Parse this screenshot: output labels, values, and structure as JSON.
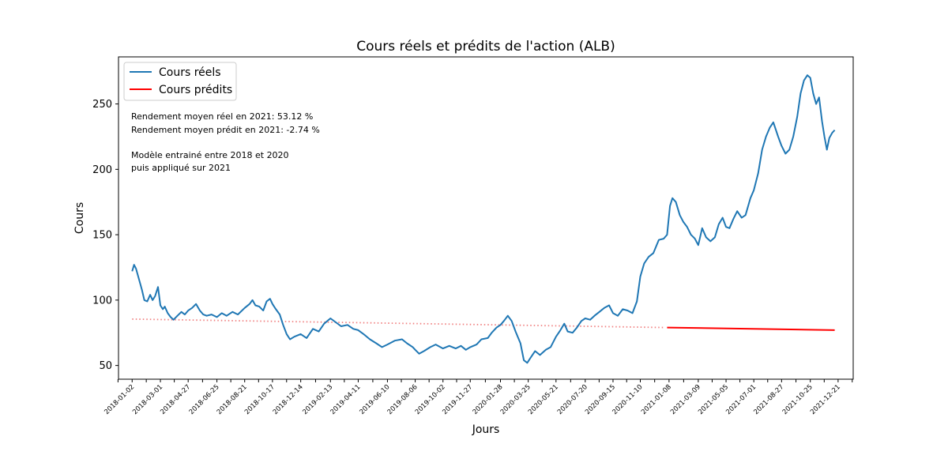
{
  "chart_data": {
    "type": "line",
    "title": "Cours réels et prédits de l'action (ALB)",
    "xlabel": "Jours",
    "ylabel": "Cours",
    "ylim": [
      39.5,
      286
    ],
    "yticks": [
      50,
      100,
      150,
      200,
      250
    ],
    "xlim": [
      "2017-12-05",
      "2022-01-21"
    ],
    "xticks": [
      "2018-01-02",
      "2018-03-01",
      "2018-04-27",
      "2018-06-25",
      "2018-08-21",
      "2018-10-17",
      "2018-12-14",
      "2019-02-13",
      "2019-04-11",
      "2019-06-10",
      "2019-08-06",
      "2019-10-02",
      "2019-11-27",
      "2020-01-28",
      "2020-03-25",
      "2020-05-21",
      "2020-07-20",
      "2020-09-15",
      "2020-11-10",
      "2021-01-08",
      "2021-03-09",
      "2021-05-05",
      "2021-07-01",
      "2021-08-27",
      "2021-10-25",
      "2021-12-21"
    ],
    "grid": false,
    "legend_position": "upper left",
    "legend": [
      "Cours réels",
      "Cours prédits"
    ],
    "colors": {
      "real": "#1f77b4",
      "predicted": "#ff0000",
      "predicted_train": "#f08080"
    },
    "annotations": [
      "Rendement moyen réel en 2021: 53.12 %",
      "Rendement moyen prédit en 2021: -2.74 %",
      "",
      "Modèle entrainé entre 2018 et 2020",
      "puis appliqué sur 2021"
    ],
    "series": [
      {
        "name": "Cours réels",
        "points": [
          [
            "2018-01-02",
            122
          ],
          [
            "2018-01-06",
            127
          ],
          [
            "2018-01-10",
            124
          ],
          [
            "2018-01-16",
            116
          ],
          [
            "2018-01-22",
            108
          ],
          [
            "2018-01-27",
            100
          ],
          [
            "2018-02-02",
            99
          ],
          [
            "2018-02-08",
            104
          ],
          [
            "2018-02-13",
            100
          ],
          [
            "2018-02-18",
            103
          ],
          [
            "2018-02-24",
            110
          ],
          [
            "2018-03-01",
            96
          ],
          [
            "2018-03-06",
            93
          ],
          [
            "2018-03-10",
            95
          ],
          [
            "2018-03-16",
            90
          ],
          [
            "2018-03-22",
            87
          ],
          [
            "2018-03-28",
            85
          ],
          [
            "2018-04-05",
            88
          ],
          [
            "2018-04-13",
            91
          ],
          [
            "2018-04-20",
            89
          ],
          [
            "2018-04-27",
            92
          ],
          [
            "2018-05-05",
            94
          ],
          [
            "2018-05-13",
            97
          ],
          [
            "2018-05-21",
            92
          ],
          [
            "2018-05-28",
            89
          ],
          [
            "2018-06-04",
            88
          ],
          [
            "2018-06-14",
            89
          ],
          [
            "2018-06-25",
            87
          ],
          [
            "2018-07-05",
            90
          ],
          [
            "2018-07-15",
            88
          ],
          [
            "2018-07-27",
            91
          ],
          [
            "2018-08-07",
            89
          ],
          [
            "2018-08-21",
            94
          ],
          [
            "2018-08-31",
            97
          ],
          [
            "2018-09-06",
            100
          ],
          [
            "2018-09-12",
            96
          ],
          [
            "2018-09-20",
            95
          ],
          [
            "2018-09-28",
            92
          ],
          [
            "2018-10-05",
            99
          ],
          [
            "2018-10-12",
            101
          ],
          [
            "2018-10-17",
            97
          ],
          [
            "2018-10-24",
            93
          ],
          [
            "2018-11-01",
            89
          ],
          [
            "2018-11-08",
            81
          ],
          [
            "2018-11-15",
            74
          ],
          [
            "2018-11-22",
            70
          ],
          [
            "2018-12-01",
            72
          ],
          [
            "2018-12-14",
            74
          ],
          [
            "2018-12-26",
            71
          ],
          [
            "2019-01-08",
            78
          ],
          [
            "2019-01-20",
            76
          ],
          [
            "2019-01-31",
            82
          ],
          [
            "2019-02-13",
            86
          ],
          [
            "2019-02-24",
            83
          ],
          [
            "2019-03-07",
            80
          ],
          [
            "2019-03-20",
            81
          ],
          [
            "2019-04-01",
            78
          ],
          [
            "2019-04-11",
            77
          ],
          [
            "2019-04-22",
            74
          ],
          [
            "2019-05-05",
            70
          ],
          [
            "2019-05-18",
            67
          ],
          [
            "2019-05-30",
            64
          ],
          [
            "2019-06-10",
            66
          ],
          [
            "2019-06-25",
            69
          ],
          [
            "2019-07-10",
            70
          ],
          [
            "2019-07-20",
            67
          ],
          [
            "2019-08-01",
            64
          ],
          [
            "2019-08-06",
            62
          ],
          [
            "2019-08-14",
            59
          ],
          [
            "2019-08-24",
            61
          ],
          [
            "2019-09-06",
            64
          ],
          [
            "2019-09-17",
            66
          ],
          [
            "2019-10-02",
            63
          ],
          [
            "2019-10-15",
            65
          ],
          [
            "2019-10-28",
            63
          ],
          [
            "2019-11-08",
            65
          ],
          [
            "2019-11-18",
            62
          ],
          [
            "2019-11-27",
            64
          ],
          [
            "2019-12-10",
            66
          ],
          [
            "2019-12-20",
            70
          ],
          [
            "2020-01-02",
            71
          ],
          [
            "2020-01-10",
            75
          ],
          [
            "2020-01-20",
            79
          ],
          [
            "2020-01-28",
            81
          ],
          [
            "2020-02-04",
            84
          ],
          [
            "2020-02-12",
            88
          ],
          [
            "2020-02-20",
            84
          ],
          [
            "2020-02-28",
            76
          ],
          [
            "2020-03-09",
            67
          ],
          [
            "2020-03-16",
            54
          ],
          [
            "2020-03-23",
            52
          ],
          [
            "2020-03-30",
            56
          ],
          [
            "2020-04-08",
            61
          ],
          [
            "2020-04-18",
            58
          ],
          [
            "2020-04-30",
            62
          ],
          [
            "2020-05-10",
            64
          ],
          [
            "2020-05-21",
            72
          ],
          [
            "2020-05-30",
            77
          ],
          [
            "2020-06-07",
            82
          ],
          [
            "2020-06-14",
            76
          ],
          [
            "2020-06-24",
            75
          ],
          [
            "2020-07-03",
            79
          ],
          [
            "2020-07-12",
            84
          ],
          [
            "2020-07-20",
            86
          ],
          [
            "2020-07-30",
            85
          ],
          [
            "2020-08-08",
            88
          ],
          [
            "2020-08-18",
            91
          ],
          [
            "2020-08-28",
            94
          ],
          [
            "2020-09-07",
            96
          ],
          [
            "2020-09-15",
            90
          ],
          [
            "2020-09-25",
            88
          ],
          [
            "2020-10-05",
            93
          ],
          [
            "2020-10-15",
            92
          ],
          [
            "2020-10-25",
            90
          ],
          [
            "2020-11-03",
            99
          ],
          [
            "2020-11-10",
            118
          ],
          [
            "2020-11-18",
            128
          ],
          [
            "2020-11-27",
            133
          ],
          [
            "2020-12-07",
            136
          ],
          [
            "2020-12-18",
            146
          ],
          [
            "2020-12-28",
            147
          ],
          [
            "2021-01-04",
            150
          ],
          [
            "2021-01-10",
            172
          ],
          [
            "2021-01-15",
            178
          ],
          [
            "2021-01-22",
            175
          ],
          [
            "2021-01-30",
            165
          ],
          [
            "2021-02-06",
            160
          ],
          [
            "2021-02-14",
            156
          ],
          [
            "2021-02-22",
            150
          ],
          [
            "2021-03-02",
            147
          ],
          [
            "2021-03-09",
            142
          ],
          [
            "2021-03-17",
            155
          ],
          [
            "2021-03-25",
            148
          ],
          [
            "2021-04-03",
            145
          ],
          [
            "2021-04-12",
            148
          ],
          [
            "2021-04-20",
            158
          ],
          [
            "2021-04-28",
            163
          ],
          [
            "2021-05-05",
            156
          ],
          [
            "2021-05-12",
            155
          ],
          [
            "2021-05-20",
            162
          ],
          [
            "2021-05-28",
            168
          ],
          [
            "2021-06-06",
            163
          ],
          [
            "2021-06-14",
            165
          ],
          [
            "2021-06-24",
            178
          ],
          [
            "2021-07-01",
            184
          ],
          [
            "2021-07-10",
            197
          ],
          [
            "2021-07-18",
            215
          ],
          [
            "2021-07-26",
            225
          ],
          [
            "2021-08-03",
            232
          ],
          [
            "2021-08-10",
            236
          ],
          [
            "2021-08-20",
            225
          ],
          [
            "2021-08-27",
            218
          ],
          [
            "2021-09-04",
            212
          ],
          [
            "2021-09-12",
            215
          ],
          [
            "2021-09-20",
            225
          ],
          [
            "2021-09-28",
            240
          ],
          [
            "2021-10-05",
            258
          ],
          [
            "2021-10-12",
            268
          ],
          [
            "2021-10-19",
            272
          ],
          [
            "2021-10-25",
            270
          ],
          [
            "2021-10-31",
            258
          ],
          [
            "2021-11-06",
            250
          ],
          [
            "2021-11-12",
            255
          ],
          [
            "2021-11-18",
            237
          ],
          [
            "2021-11-23",
            225
          ],
          [
            "2021-11-28",
            215
          ],
          [
            "2021-12-03",
            224
          ],
          [
            "2021-12-09",
            228
          ],
          [
            "2021-12-14",
            230
          ]
        ]
      },
      {
        "name": "Cours prédits",
        "points": [
          [
            "2021-01-04",
            79
          ],
          [
            "2021-12-14",
            77
          ]
        ]
      },
      {
        "name": "",
        "style": "dotted",
        "points": [
          [
            "2018-01-02",
            85.5
          ],
          [
            "2020-12-31",
            79
          ]
        ]
      }
    ]
  }
}
